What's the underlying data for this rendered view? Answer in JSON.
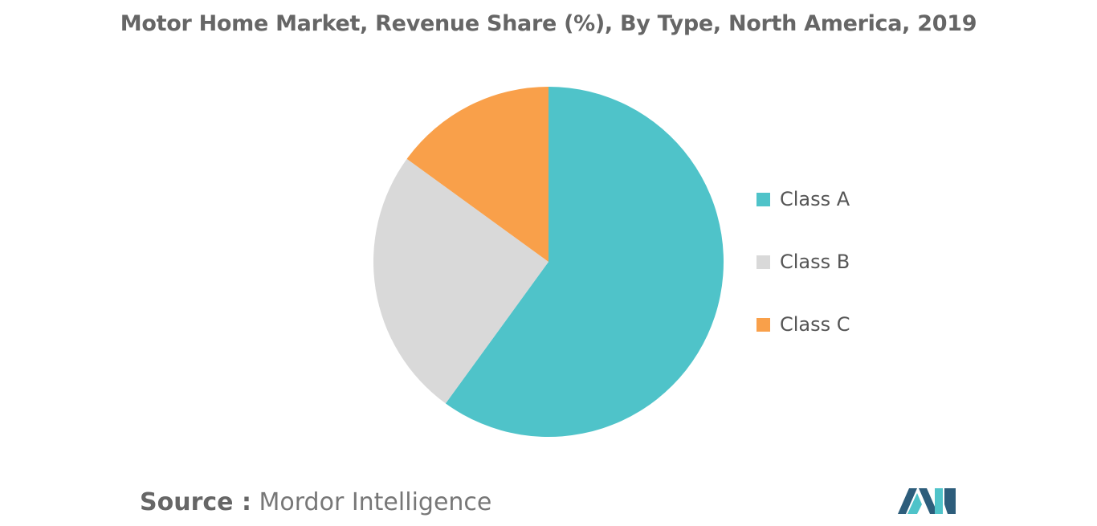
{
  "title": "Motor Home Market, Revenue Share (%), By Type, North America, 2019",
  "chart_data": {
    "type": "pie",
    "title": "Motor Home Market, Revenue Share (%), By Type, North America, 2019",
    "categories": [
      "Class A",
      "Class B",
      "Class C"
    ],
    "values": [
      60,
      25,
      15
    ],
    "colors": [
      "#4FC3C9",
      "#D9D9D9",
      "#F9A04A"
    ],
    "legend_position": "right"
  },
  "source": {
    "label": "Source :",
    "value": "Mordor Intelligence"
  },
  "logo": {
    "icon": "mordor-intelligence-logo",
    "colors": [
      "#2D5D7B",
      "#4FC3C9"
    ]
  }
}
